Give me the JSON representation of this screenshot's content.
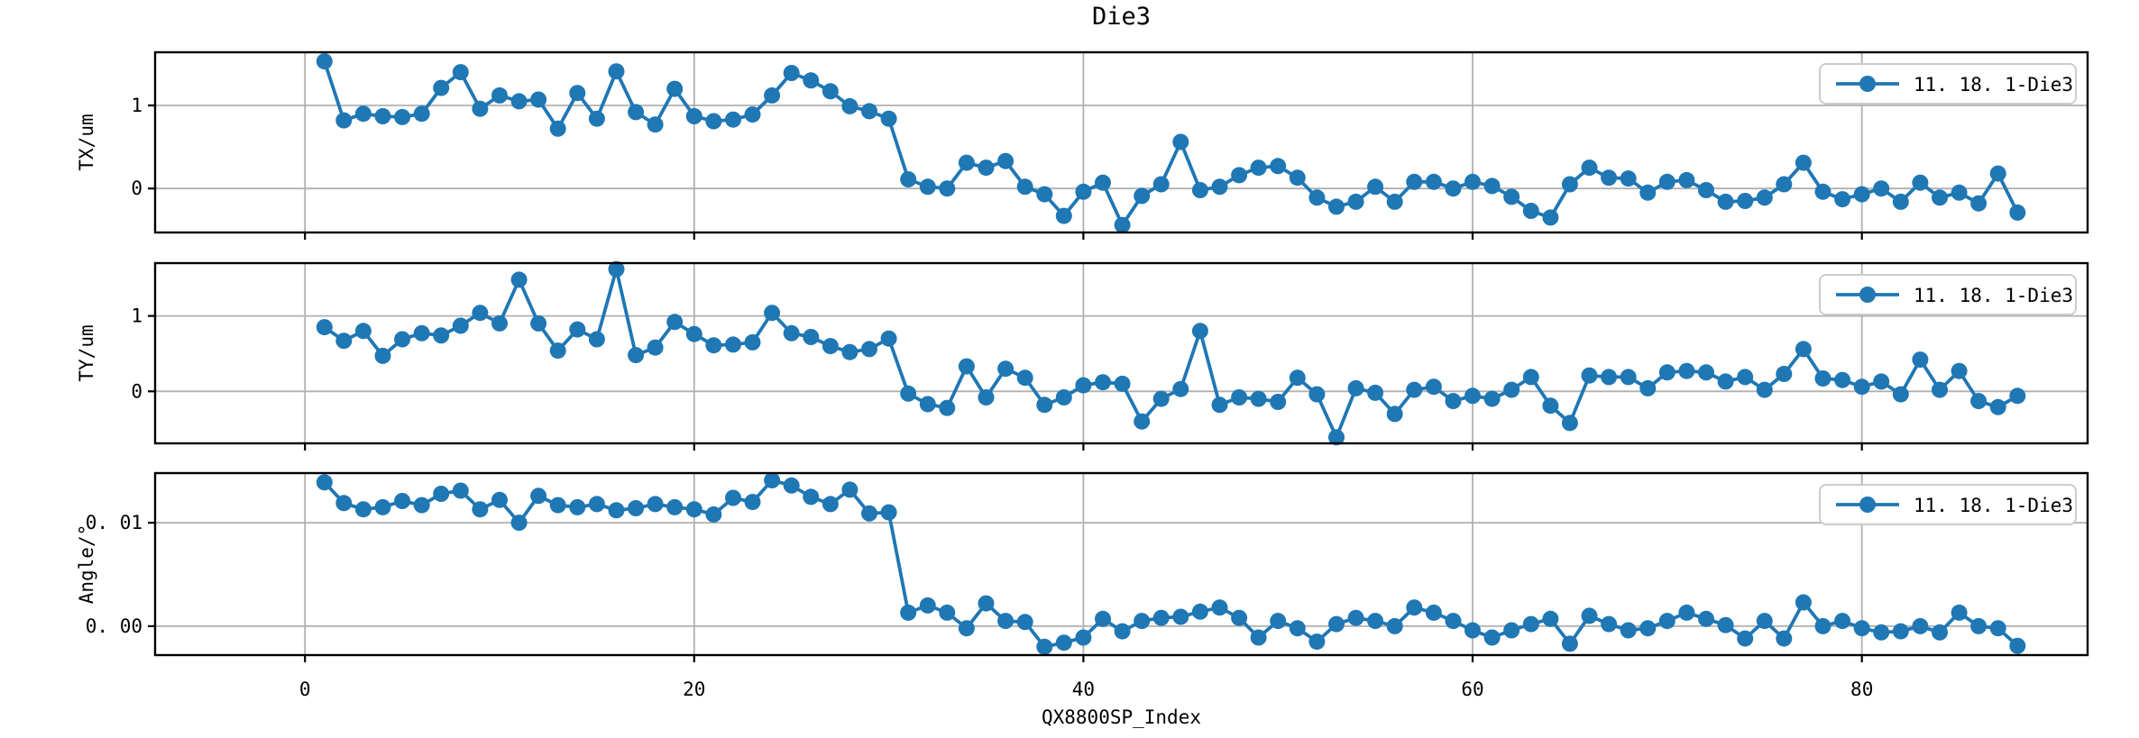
{
  "figure": {
    "title": "Die3",
    "xlabel": "QX8800SP_Index",
    "legend_label": "11. 18. 1-Die3",
    "legend_position": "upper right",
    "colors": {
      "series": "#1f77b4",
      "grid": "#b0b0b0",
      "spine": "#000000",
      "legend_border": "#cccccc",
      "background": "#ffffff"
    },
    "x_ticks": [
      0,
      20,
      40,
      60,
      80
    ],
    "xlim": [
      -7.7,
      91.6
    ],
    "grid": true
  },
  "chart_data": [
    {
      "type": "line",
      "marker": "o",
      "ylabel": "TX/um",
      "ylim": [
        -0.53,
        1.64
      ],
      "yticks": [
        {
          "value": 1,
          "label": "1"
        },
        {
          "value": 0,
          "label": "0"
        }
      ],
      "x_start": 1,
      "series": [
        {
          "name": "11. 18. 1-Die3",
          "values": [
            1.53,
            0.82,
            0.9,
            0.87,
            0.86,
            0.9,
            1.21,
            1.4,
            0.96,
            1.12,
            1.05,
            1.07,
            0.72,
            1.15,
            0.84,
            1.41,
            0.92,
            0.77,
            1.2,
            0.87,
            0.81,
            0.83,
            0.89,
            1.12,
            1.39,
            1.3,
            1.17,
            0.99,
            0.93,
            0.84,
            0.11,
            0.02,
            0.0,
            0.31,
            0.25,
            0.33,
            0.02,
            -0.07,
            -0.33,
            -0.04,
            0.07,
            -0.44,
            -0.09,
            0.05,
            0.56,
            -0.02,
            0.02,
            0.16,
            0.25,
            0.27,
            0.13,
            -0.11,
            -0.22,
            -0.16,
            0.02,
            -0.16,
            0.08,
            0.08,
            0.0,
            0.08,
            0.03,
            -0.1,
            -0.27,
            -0.35,
            0.05,
            0.25,
            0.13,
            0.12,
            -0.05,
            0.08,
            0.1,
            -0.02,
            -0.16,
            -0.15,
            -0.11,
            0.05,
            0.31,
            -0.04,
            -0.13,
            -0.07,
            0.0,
            -0.16,
            0.07,
            -0.11,
            -0.05,
            -0.18,
            0.18,
            -0.29
          ]
        }
      ]
    },
    {
      "type": "line",
      "marker": "o",
      "ylabel": "TY/um",
      "ylim": [
        -0.69,
        1.7
      ],
      "yticks": [
        {
          "value": 1,
          "label": "1"
        },
        {
          "value": 0,
          "label": "0"
        }
      ],
      "x_start": 1,
      "series": [
        {
          "name": "11. 18. 1-Die3",
          "values": [
            0.85,
            0.67,
            0.8,
            0.47,
            0.69,
            0.77,
            0.74,
            0.87,
            1.04,
            0.9,
            1.48,
            0.9,
            0.54,
            0.82,
            0.69,
            1.62,
            0.48,
            0.58,
            0.92,
            0.76,
            0.61,
            0.62,
            0.65,
            1.04,
            0.77,
            0.72,
            0.6,
            0.52,
            0.56,
            0.7,
            -0.03,
            -0.17,
            -0.22,
            0.33,
            -0.08,
            0.3,
            0.18,
            -0.18,
            -0.08,
            0.08,
            0.12,
            0.1,
            -0.4,
            -0.1,
            0.03,
            0.8,
            -0.18,
            -0.08,
            -0.1,
            -0.14,
            0.18,
            -0.04,
            -0.61,
            0.04,
            -0.02,
            -0.3,
            0.02,
            0.06,
            -0.13,
            -0.06,
            -0.1,
            0.02,
            0.19,
            -0.19,
            -0.42,
            0.21,
            0.19,
            0.19,
            0.04,
            0.25,
            0.27,
            0.25,
            0.13,
            0.19,
            0.02,
            0.23,
            0.56,
            0.17,
            0.15,
            0.06,
            0.13,
            -0.04,
            0.42,
            0.02,
            0.27,
            -0.13,
            -0.21,
            -0.06
          ]
        }
      ]
    },
    {
      "type": "line",
      "marker": "o",
      "ylabel": "Angle/°",
      "ylim": [
        -0.0028,
        0.0148
      ],
      "yticks": [
        {
          "value": 0.01,
          "label": "0. 01"
        },
        {
          "value": 0.0,
          "label": "0. 00"
        }
      ],
      "x_start": 1,
      "series": [
        {
          "name": "11. 18. 1-Die3",
          "values": [
            0.0139,
            0.0119,
            0.0113,
            0.0115,
            0.0121,
            0.0117,
            0.0128,
            0.0131,
            0.0113,
            0.0122,
            0.01,
            0.0126,
            0.0117,
            0.0115,
            0.0118,
            0.0112,
            0.0114,
            0.0118,
            0.0115,
            0.0113,
            0.0108,
            0.0124,
            0.012,
            0.0141,
            0.0136,
            0.0125,
            0.0118,
            0.0132,
            0.0109,
            0.011,
            0.0013,
            0.002,
            0.0013,
            -0.0002,
            0.0022,
            0.0005,
            0.0004,
            -0.002,
            -0.0016,
            -0.0011,
            0.0007,
            -0.0005,
            0.0005,
            0.0008,
            0.0009,
            0.0014,
            0.0018,
            0.0008,
            -0.0011,
            0.0005,
            -0.0002,
            -0.0015,
            0.0002,
            0.0008,
            0.0005,
            0.0,
            0.0018,
            0.0013,
            0.0005,
            -0.0004,
            -0.0011,
            -0.0004,
            0.0002,
            0.0007,
            -0.0017,
            0.001,
            0.0002,
            -0.0004,
            -0.0002,
            0.0005,
            0.0013,
            0.0007,
            0.0001,
            -0.0012,
            0.0005,
            -0.0012,
            0.0023,
            0.0,
            0.0005,
            -0.0002,
            -0.0006,
            -0.0005,
            0.0,
            -0.0006,
            0.0013,
            0.0,
            -0.0002,
            -0.0019
          ]
        }
      ]
    }
  ]
}
